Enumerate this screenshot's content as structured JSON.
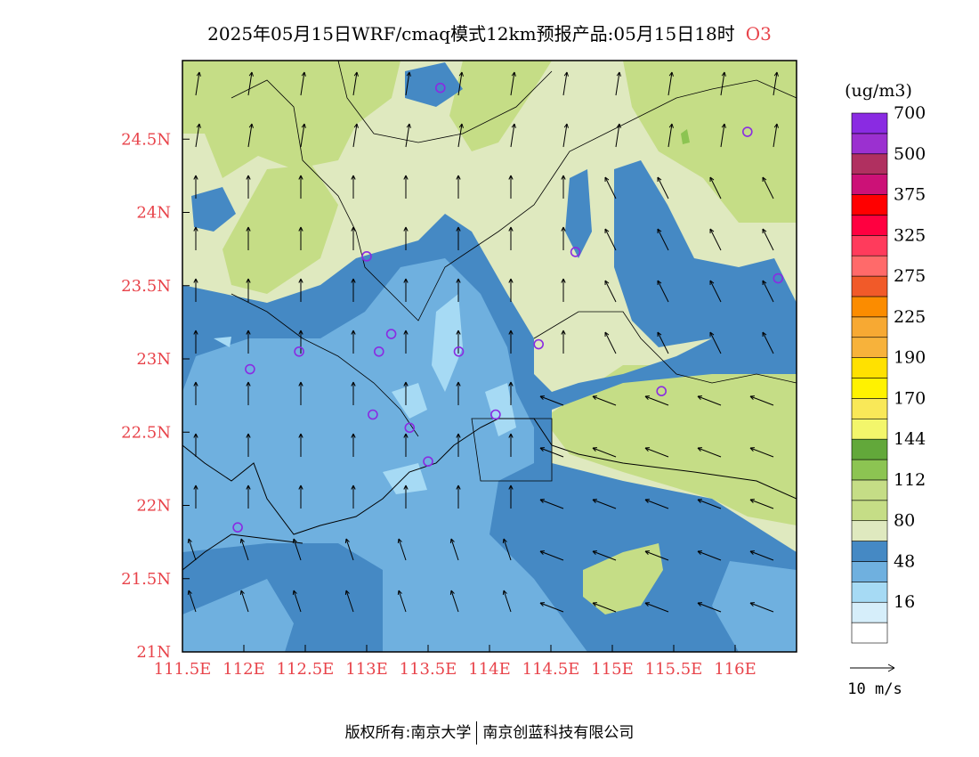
{
  "title": {
    "main": "2025年05月15日WRF/cmaq模式12km预报产品:05月15日18时",
    "pollutant": "O3"
  },
  "axes": {
    "x_ticks": [
      "111.5E",
      "112E",
      "112.5E",
      "113E",
      "113.5E",
      "114E",
      "114.5E",
      "115E",
      "115.5E",
      "116E"
    ],
    "y_ticks": [
      "21N",
      "21.5N",
      "22N",
      "22.5N",
      "23N",
      "23.5N",
      "24N",
      "24.5N"
    ],
    "lon_range": [
      111.5,
      116.5
    ],
    "lat_range": [
      21,
      25
    ],
    "tick_color": "#e8434a"
  },
  "legend": {
    "unit": "(ug/m3)",
    "levels": [
      {
        "label": "",
        "color": "#ffffff"
      },
      {
        "label": "16",
        "color": "#d6eefa"
      },
      {
        "label": "",
        "color": "#a6daf4"
      },
      {
        "label": "48",
        "color": "#6fb0df"
      },
      {
        "label": "",
        "color": "#4589c4"
      },
      {
        "label": "80",
        "color": "#dfe9bf"
      },
      {
        "label": "",
        "color": "#c5dd86"
      },
      {
        "label": "112",
        "color": "#c5dd86"
      },
      {
        "label": "",
        "color": "#8cc452"
      },
      {
        "label": "144",
        "color": "#62a83a"
      },
      {
        "label": "",
        "color": "#f3f66b"
      },
      {
        "label": "170",
        "color": "#f9e858"
      },
      {
        "label": "",
        "color": "#fff200"
      },
      {
        "label": "190",
        "color": "#ffe100"
      },
      {
        "label": "",
        "color": "#f7b23b"
      },
      {
        "label": "225",
        "color": "#f7a933"
      },
      {
        "label": "",
        "color": "#fb8c00"
      },
      {
        "label": "275",
        "color": "#f15a29"
      },
      {
        "label": "",
        "color": "#ff6a6a"
      },
      {
        "label": "325",
        "color": "#ff3b5c"
      },
      {
        "label": "",
        "color": "#ff0040"
      },
      {
        "label": "375",
        "color": "#ff0000"
      },
      {
        "label": "",
        "color": "#cc1177"
      },
      {
        "label": "500",
        "color": "#b03060"
      },
      {
        "label": "",
        "color": "#9b30d0"
      },
      {
        "label": "700",
        "color": "#8a2be2"
      }
    ],
    "wind_ref": "10 m/s"
  },
  "stations": [
    {
      "lon": 113.6,
      "lat": 24.85
    },
    {
      "lon": 116.1,
      "lat": 24.55
    },
    {
      "lon": 113.0,
      "lat": 23.7
    },
    {
      "lon": 114.7,
      "lat": 23.73
    },
    {
      "lon": 116.35,
      "lat": 23.55
    },
    {
      "lon": 113.2,
      "lat": 23.17
    },
    {
      "lon": 112.45,
      "lat": 23.05
    },
    {
      "lon": 113.1,
      "lat": 23.05
    },
    {
      "lon": 113.75,
      "lat": 23.05
    },
    {
      "lon": 114.4,
      "lat": 23.1
    },
    {
      "lon": 112.05,
      "lat": 22.93
    },
    {
      "lon": 115.4,
      "lat": 22.78
    },
    {
      "lon": 113.05,
      "lat": 22.62
    },
    {
      "lon": 114.05,
      "lat": 22.62
    },
    {
      "lon": 113.35,
      "lat": 22.53
    },
    {
      "lon": 113.5,
      "lat": 22.3
    },
    {
      "lon": 111.95,
      "lat": 21.85
    }
  ],
  "footer": {
    "left": "版权所有:南京大学",
    "right": "南京创蓝科技有限公司"
  }
}
